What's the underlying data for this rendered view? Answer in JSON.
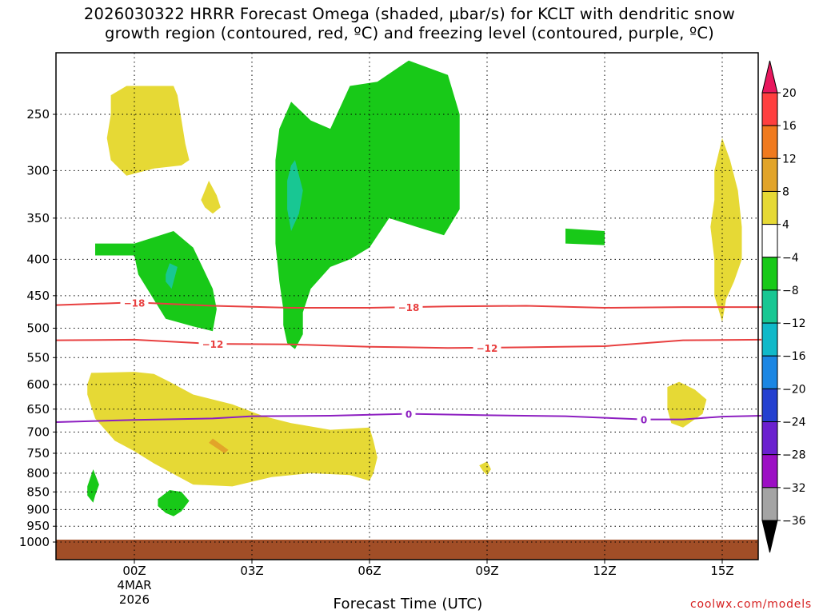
{
  "title_line1": "2026030322 HRRR Forecast Omega (shaded, µbar/s) for KCLT with dendritic snow",
  "title_line2": "growth region (contoured, red, ºC) and freezing level (contoured, purple, ºC)",
  "credit": "coolwx.com/models",
  "chart_data": {
    "type": "contour",
    "title": "2026030322 HRRR Forecast Omega (shaded, µbar/s) for KCLT with dendritic snow growth region (contoured, red, ºC) and freezing level (contoured, purple, ºC)",
    "xlabel": "Forecast Time (UTC)",
    "ylabel": "",
    "x_range_hours": [
      -2,
      16
    ],
    "y_range_mb": [
      200,
      1020
    ],
    "x_ticks": [
      {
        "hour": 0,
        "label": "00Z",
        "sub1": "4MAR",
        "sub2": "2026"
      },
      {
        "hour": 3,
        "label": "03Z"
      },
      {
        "hour": 6,
        "label": "06Z"
      },
      {
        "hour": 9,
        "label": "09Z"
      },
      {
        "hour": 12,
        "label": "12Z"
      },
      {
        "hour": 15,
        "label": "15Z"
      }
    ],
    "y_ticks": [
      250,
      300,
      350,
      400,
      450,
      500,
      550,
      600,
      650,
      700,
      750,
      800,
      850,
      900,
      950,
      1000
    ],
    "colorbar": {
      "labels": [
        "20",
        "16",
        "12",
        "8",
        "4",
        "-4",
        "-8",
        "-12",
        "-16",
        "-20",
        "-24",
        "-28",
        "-32",
        "-36"
      ],
      "bins": [
        {
          "color": "#e8175d"
        },
        {
          "color": "#ff3f3f"
        },
        {
          "color": "#f07a1e"
        },
        {
          "color": "#e2a429"
        },
        {
          "color": "#e6d935"
        },
        {
          "color": "#ffffff"
        },
        {
          "color": "#18c918"
        },
        {
          "color": "#18c793"
        },
        {
          "color": "#10b9c9"
        },
        {
          "color": "#1b86e3"
        },
        {
          "color": "#2440d0"
        },
        {
          "color": "#6b21cf"
        },
        {
          "color": "#9c0fc4"
        },
        {
          "color": "#a4a4a4"
        },
        {
          "color": "#000000"
        }
      ]
    },
    "series": [
      {
        "name": "Omega",
        "units": "µbar/s",
        "kind": "shaded",
        "regions": [
          {
            "level": "4 to 8",
            "color": "#e6d935",
            "hours": [
              -0.9,
              1.4
            ],
            "mb": [
              230,
              305
            ]
          },
          {
            "level": "4 to 8",
            "color": "#e6d935",
            "hours": [
              1.8,
              2.2
            ],
            "mb": [
              310,
              345
            ]
          },
          {
            "level": "-4 to -8",
            "color": "#18c918",
            "hours": [
              -1.0,
              2.1
            ],
            "mb": [
              365,
              505
            ]
          },
          {
            "level": "-8 to -12",
            "color": "#18c793",
            "hours": [
              0.8,
              1.1
            ],
            "mb": [
              405,
              440
            ]
          },
          {
            "level": "-4 to -8",
            "color": "#18c918",
            "hours": [
              3.6,
              8.2
            ],
            "mb": [
              220,
              535
            ]
          },
          {
            "level": "-8 to -12",
            "color": "#18c793",
            "hours": [
              3.9,
              4.2
            ],
            "mb": [
              290,
              370
            ]
          },
          {
            "level": "-4 to -8",
            "color": "#18c918",
            "hours": [
              11.0,
              12.0
            ],
            "mb": [
              360,
              385
            ]
          },
          {
            "level": "4 to 8",
            "color": "#e6d935",
            "hours": [
              14.7,
              15.5
            ],
            "mb": [
              270,
              490
            ]
          },
          {
            "level": "4 to 8",
            "color": "#e6d935",
            "hours": [
              -1.2,
              6.2
            ],
            "mb": [
              575,
              835
            ]
          },
          {
            "level": "8 to 12",
            "color": "#e2a429",
            "hours": [
              1.8,
              2.5
            ],
            "mb": [
              720,
              775
            ]
          },
          {
            "level": "4 to 8",
            "color": "#e6d935",
            "hours": [
              8.8,
              9.2
            ],
            "mb": [
              770,
              805
            ]
          },
          {
            "level": "4 to 8",
            "color": "#e6d935",
            "hours": [
              13.6,
              14.6
            ],
            "mb": [
              595,
              690
            ]
          },
          {
            "level": "-4 to -8",
            "color": "#18c918",
            "hours": [
              -1.2,
              -0.8
            ],
            "mb": [
              790,
              880
            ]
          },
          {
            "level": "-4 to -8",
            "color": "#18c918",
            "hours": [
              0.6,
              1.4
            ],
            "mb": [
              860,
              920
            ]
          }
        ]
      },
      {
        "name": "Dendritic growth -18",
        "units": "ºC",
        "kind": "contour",
        "color": "#e84040",
        "label": "-18",
        "label_hours": [
          0,
          7
        ],
        "points": [
          [
            -2,
            464
          ],
          [
            0,
            460
          ],
          [
            2,
            465
          ],
          [
            4,
            468
          ],
          [
            6,
            468
          ],
          [
            8,
            466
          ],
          [
            10,
            465
          ],
          [
            12,
            468
          ],
          [
            14,
            467
          ],
          [
            16,
            467
          ]
        ]
      },
      {
        "name": "Dendritic growth -12",
        "units": "ºC",
        "kind": "contour",
        "color": "#e84040",
        "label": "-12",
        "label_hours": [
          2,
          9
        ],
        "points": [
          [
            -2,
            520
          ],
          [
            0,
            519
          ],
          [
            2,
            526
          ],
          [
            4,
            527
          ],
          [
            6,
            531
          ],
          [
            8,
            533
          ],
          [
            10,
            532
          ],
          [
            12,
            530
          ],
          [
            14,
            520
          ],
          [
            16,
            519
          ]
        ]
      },
      {
        "name": "Freezing level 0",
        "units": "ºC",
        "kind": "contour",
        "color": "#8d1fc1",
        "label": "0",
        "label_hours": [
          7,
          13
        ],
        "points": [
          [
            -2,
            678
          ],
          [
            0,
            673
          ],
          [
            2,
            670
          ],
          [
            3,
            665
          ],
          [
            5,
            664
          ],
          [
            7,
            660
          ],
          [
            9,
            663
          ],
          [
            11,
            665
          ],
          [
            13,
            672
          ],
          [
            14,
            672
          ],
          [
            15,
            666
          ],
          [
            16,
            664
          ]
        ]
      }
    ],
    "ground_surface_mb": 1000,
    "grid": true
  }
}
